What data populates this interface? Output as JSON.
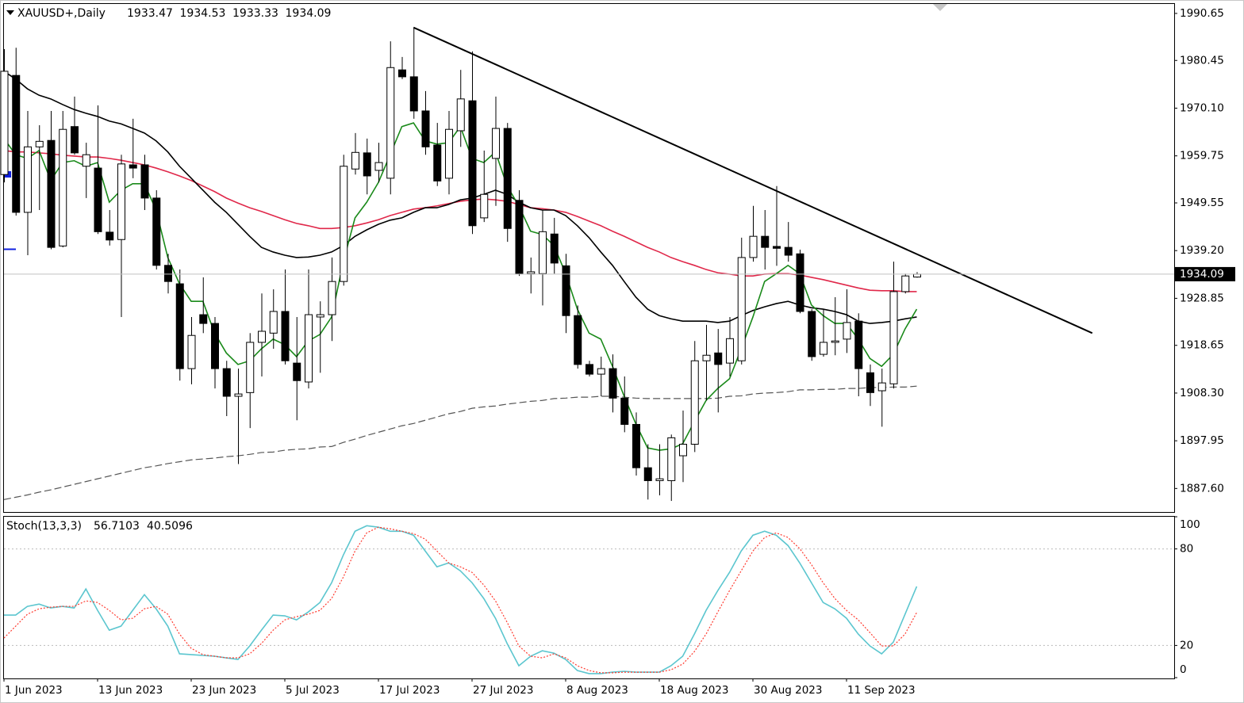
{
  "chart_data": [
    {
      "type": "candlestick",
      "title": "XAUUSD+,Daily",
      "categories": [
        "1 Jun 2023",
        null,
        null,
        null,
        null,
        null,
        null,
        null,
        "13 Jun 2023",
        null,
        null,
        null,
        null,
        null,
        null,
        null,
        "23 Jun 2023",
        null,
        null,
        null,
        null,
        null,
        null,
        null,
        "5 Jul 2023",
        null,
        null,
        null,
        null,
        null,
        null,
        null,
        "17 Jul 2023",
        null,
        null,
        null,
        null,
        null,
        null,
        null,
        "27 Jul 2023",
        null,
        null,
        null,
        null,
        null,
        null,
        null,
        "8 Aug 2023",
        null,
        null,
        null,
        null,
        null,
        null,
        null,
        "18 Aug 2023",
        null,
        null,
        null,
        null,
        null,
        null,
        null,
        "30 Aug 2023",
        null,
        null,
        null,
        null,
        null,
        null,
        null,
        "11 Sep 2023",
        null,
        null,
        null,
        null,
        null,
        null
      ],
      "open": [
        1955.7,
        1977.2,
        1947.5,
        1961.7,
        1963.1,
        1940.2,
        1966.1,
        1957.5,
        1957.1,
        1943.2,
        1941.6,
        1957.8,
        1957.8,
        1950.6,
        1936.0,
        1932.0,
        1913.6,
        1925.3,
        1923.4,
        1913.6,
        1907.6,
        1908.4,
        1919.3,
        1921.3,
        1926.0,
        1914.8,
        1910.7,
        1924.8,
        1925.3,
        1932.5,
        1956.9,
        1960.4,
        1956.6,
        1954.9,
        1978.4,
        1976.9,
        1969.5,
        1962.1,
        1954.9,
        1965.2,
        1971.7,
        1946.3,
        1959.2,
        1965.7,
        1950.1,
        1934.2,
        1934.2,
        1942.8,
        1935.9,
        1925.1,
        1914.5,
        1912.4,
        1913.6,
        1907.2,
        1901.5,
        1892.1,
        1889.3,
        1889.3,
        1894.7,
        1897.2,
        1915.3,
        1917.0,
        1914.8,
        1915.3,
        1937.7,
        1942.3,
        1940.1,
        1939.9,
        1938.5,
        1926.0,
        1916.7,
        1919.3,
        1920.0,
        1923.9,
        1912.7,
        1908.8,
        1910.3,
        1930.3,
        1933.47
      ],
      "high": [
        1982.9,
        1983.2,
        1969.5,
        1966.4,
        1969.5,
        1969.5,
        1972.6,
        1962.6,
        1970.7,
        1948.0,
        1960.0,
        1967.8,
        1960.0,
        1952.3,
        1938.5,
        1935.1,
        1924.8,
        1933.4,
        1924.8,
        1915.3,
        1913.6,
        1921.3,
        1929.9,
        1930.8,
        1935.1,
        1924.8,
        1935.1,
        1928.2,
        1937.7,
        1960.0,
        1964.7,
        1963.5,
        1962.6,
        1984.6,
        1981.2,
        1987.6,
        1973.8,
        1966.9,
        1969.5,
        1978.4,
        1982.4,
        1960.9,
        1972.6,
        1966.9,
        1952.3,
        1937.7,
        1948.0,
        1946.3,
        1938.5,
        1927.3,
        1915.3,
        1916.2,
        1916.7,
        1911.9,
        1904.1,
        1897.2,
        1897.2,
        1899.3,
        1904.5,
        1919.6,
        1923.1,
        1922.2,
        1924.8,
        1942.0,
        1948.9,
        1948.0,
        1953.2,
        1945.4,
        1939.4,
        1926.5,
        1926.5,
        1929.1,
        1930.8,
        1925.6,
        1914.5,
        1913.6,
        1936.8,
        1934.2,
        1934.53
      ],
      "low": [
        1954.0,
        1946.8,
        1938.2,
        1948.0,
        1939.5,
        1939.9,
        1960.0,
        1950.6,
        1942.8,
        1940.3,
        1924.8,
        1954.9,
        1948.0,
        1935.1,
        1929.9,
        1911.0,
        1910.2,
        1921.3,
        1909.3,
        1903.3,
        1892.9,
        1900.7,
        1911.9,
        1917.9,
        1914.5,
        1902.4,
        1909.3,
        1912.7,
        1919.6,
        1931.6,
        1955.7,
        1951.4,
        1954.0,
        1951.4,
        1976.4,
        1967.8,
        1960.0,
        1953.2,
        1951.4,
        1961.7,
        1942.8,
        1945.4,
        1948.9,
        1941.1,
        1933.7,
        1929.9,
        1927.3,
        1934.2,
        1921.3,
        1913.6,
        1911.9,
        1907.6,
        1904.1,
        1899.8,
        1890.4,
        1885.2,
        1886.1,
        1884.9,
        1889.0,
        1895.5,
        1906.7,
        1904.1,
        1911.9,
        1914.5,
        1936.8,
        1935.1,
        1935.9,
        1936.8,
        1925.6,
        1915.3,
        1916.2,
        1916.5,
        1917.0,
        1907.6,
        1905.5,
        1901.0,
        1909.3,
        1929.9,
        1933.33
      ],
      "close": [
        1978.1,
        1947.5,
        1961.7,
        1962.9,
        1939.9,
        1965.5,
        1960.4,
        1960.0,
        1943.3,
        1941.5,
        1958.0,
        1957.1,
        1950.6,
        1936.0,
        1932.5,
        1913.6,
        1920.8,
        1923.4,
        1913.6,
        1907.6,
        1908.1,
        1919.3,
        1921.7,
        1926.0,
        1915.3,
        1911.0,
        1925.3,
        1925.3,
        1932.5,
        1957.5,
        1960.5,
        1955.4,
        1958.3,
        1978.9,
        1976.9,
        1969.5,
        1961.7,
        1954.3,
        1965.5,
        1972.1,
        1944.6,
        1951.4,
        1965.7,
        1944.0,
        1934.2,
        1934.6,
        1943.3,
        1936.5,
        1925.1,
        1914.5,
        1912.4,
        1913.6,
        1907.2,
        1901.5,
        1892.1,
        1889.3,
        1889.7,
        1898.6,
        1897.2,
        1915.3,
        1916.5,
        1914.5,
        1920.1,
        1937.7,
        1942.3,
        1939.9,
        1939.7,
        1938.2,
        1926.0,
        1916.2,
        1919.3,
        1919.6,
        1923.6,
        1913.6,
        1908.4,
        1910.5,
        1930.3,
        1933.7,
        1934.09
      ],
      "up_color": "#ffffff",
      "down_color": "#000000",
      "series": [
        {
          "color": "#555555",
          "dashed": true,
          "values": [
            1885.2,
            1885.7,
            1886.2,
            1886.8,
            1887.3,
            1887.9,
            1888.5,
            1889.1,
            1889.7,
            1890.3,
            1890.9,
            1891.5,
            1892.1,
            1892.5,
            1893.0,
            1893.4,
            1893.8,
            1894.0,
            1894.2,
            1894.5,
            1894.7,
            1895.0,
            1895.4,
            1895.5,
            1895.9,
            1896.1,
            1896.2,
            1896.6,
            1896.7,
            1897.6,
            1898.3,
            1899.1,
            1899.8,
            1900.5,
            1901.2,
            1901.7,
            1902.4,
            1903.1,
            1903.8,
            1904.3,
            1905.0,
            1905.3,
            1905.5,
            1905.9,
            1906.2,
            1906.5,
            1906.7,
            1907.1,
            1907.2,
            1907.4,
            1907.4,
            1907.6,
            1907.6,
            1907.4,
            1907.2,
            1907.1,
            1907.1,
            1907.1,
            1907.1,
            1907.1,
            1907.1,
            1907.2,
            1907.6,
            1907.7,
            1908.1,
            1908.3,
            1908.4,
            1908.6,
            1909.0,
            1909.0,
            1909.1,
            1909.1,
            1909.3,
            1909.3,
            1909.5,
            1909.5,
            1909.6,
            1909.6,
            1909.8
          ]
        },
        {
          "color": "#e0284a",
          "dashed": false,
          "values": [
            1960.9,
            1960.6,
            1960.6,
            1960.4,
            1960.2,
            1959.9,
            1959.7,
            1959.5,
            1959.5,
            1959.2,
            1958.8,
            1958.3,
            1957.8,
            1957.1,
            1956.3,
            1955.4,
            1954.4,
            1953.2,
            1952.0,
            1950.6,
            1949.5,
            1948.5,
            1947.7,
            1946.8,
            1945.9,
            1945.1,
            1944.6,
            1944.0,
            1944.0,
            1944.2,
            1944.6,
            1945.2,
            1945.9,
            1946.8,
            1947.5,
            1948.2,
            1948.5,
            1948.9,
            1949.4,
            1949.9,
            1950.2,
            1950.4,
            1950.2,
            1949.9,
            1949.2,
            1948.5,
            1948.3,
            1948.0,
            1947.5,
            1946.6,
            1945.6,
            1944.6,
            1943.4,
            1942.3,
            1941.1,
            1939.9,
            1938.9,
            1937.7,
            1936.8,
            1936.0,
            1935.1,
            1934.4,
            1934.1,
            1933.7,
            1933.7,
            1934.1,
            1934.2,
            1934.2,
            1933.9,
            1933.4,
            1932.9,
            1932.3,
            1931.7,
            1931.1,
            1930.6,
            1930.5,
            1930.5,
            1930.3,
            1930.3
          ]
        },
        {
          "color": "#000000",
          "dashed": false,
          "values": [
            1978.1,
            1976.4,
            1974.3,
            1972.9,
            1972.1,
            1970.9,
            1969.8,
            1969.0,
            1968.3,
            1967.3,
            1966.7,
            1965.7,
            1964.7,
            1963.0,
            1960.6,
            1957.5,
            1954.9,
            1952.3,
            1949.7,
            1947.5,
            1944.9,
            1942.3,
            1939.9,
            1938.9,
            1938.2,
            1937.7,
            1937.8,
            1938.2,
            1938.9,
            1940.3,
            1942.3,
            1943.7,
            1944.9,
            1945.8,
            1946.3,
            1947.5,
            1948.5,
            1948.5,
            1949.2,
            1950.2,
            1950.6,
            1951.4,
            1952.3,
            1951.4,
            1949.7,
            1948.5,
            1948.0,
            1948.0,
            1946.8,
            1944.6,
            1942.0,
            1938.9,
            1936.0,
            1932.5,
            1929.1,
            1926.5,
            1925.1,
            1924.4,
            1923.9,
            1923.9,
            1923.9,
            1923.6,
            1923.9,
            1925.1,
            1926.2,
            1927.0,
            1927.7,
            1928.2,
            1927.4,
            1926.8,
            1926.5,
            1926.0,
            1925.3,
            1923.9,
            1923.4,
            1923.6,
            1923.9,
            1924.4,
            1924.8
          ]
        },
        {
          "color": "#1a8a1a",
          "dashed": false,
          "values": [
            1963.5,
            1960.0,
            1959.2,
            1960.9,
            1954.4,
            1958.3,
            1958.7,
            1957.5,
            1958.3,
            1949.7,
            1952.3,
            1953.7,
            1953.7,
            1948.0,
            1937.7,
            1932.0,
            1928.2,
            1928.2,
            1921.3,
            1917.0,
            1914.5,
            1915.3,
            1917.9,
            1920.0,
            1918.8,
            1916.2,
            1919.6,
            1921.0,
            1924.8,
            1936.8,
            1946.3,
            1949.7,
            1954.0,
            1960.0,
            1966.1,
            1966.9,
            1963.0,
            1962.3,
            1962.6,
            1966.1,
            1959.2,
            1958.3,
            1960.6,
            1953.2,
            1948.9,
            1943.4,
            1942.7,
            1940.3,
            1934.2,
            1926.5,
            1921.3,
            1920.0,
            1914.1,
            1907.6,
            1901.6,
            1896.4,
            1895.9,
            1896.2,
            1897.3,
            1902.1,
            1906.7,
            1909.3,
            1911.4,
            1917.9,
            1924.8,
            1932.5,
            1934.2,
            1936.0,
            1934.2,
            1927.4,
            1925.1,
            1923.4,
            1923.4,
            1920.0,
            1915.8,
            1914.1,
            1916.7,
            1922.2,
            1926.5
          ]
        }
      ],
      "trendline": {
        "x": [
          35,
          93
        ],
        "y": [
          1987.6,
          1921.3
        ],
        "color": "#000000"
      },
      "ylim": [
        1882.5,
        1992.7
      ],
      "yticks": [
        1990.65,
        1980.45,
        {
          "value": 1970.1,
          "label": "1970.10"
        },
        1959.75,
        1949.55,
        {
          "value": 1939.2,
          "label": "1939.20"
        },
        1928.85,
        1918.65,
        {
          "value": 1908.3,
          "label": "1908.30"
        },
        1897.95,
        {
          "value": 1887.6,
          "label": "1887.60"
        }
      ],
      "grid": false
    },
    {
      "type": "line",
      "title": "Stoch(13,3,3)",
      "series": [
        {
          "color": "#5cc6cf",
          "dashed": false,
          "values": [
            38.9,
            38.9,
            44.3,
            45.7,
            43.3,
            44.3,
            43.3,
            55.1,
            41.8,
            29.5,
            32.0,
            41.8,
            51.6,
            42.8,
            32.0,
            14.8,
            14.3,
            13.8,
            13.3,
            12.3,
            11.3,
            19.7,
            29.5,
            38.9,
            38.4,
            35.9,
            40.8,
            46.7,
            59.0,
            76.2,
            91.0,
            94.4,
            93.5,
            91.0,
            91.0,
            88.5,
            78.7,
            68.9,
            71.3,
            66.4,
            59.0,
            49.2,
            36.9,
            21.2,
            7.4,
            13.3,
            16.7,
            15.2,
            11.3,
            4.4,
            2.5,
            2.5,
            3.4,
            3.9,
            3.4,
            3.4,
            3.4,
            7.4,
            13.3,
            27.1,
            41.8,
            54.1,
            65.4,
            78.7,
            88.5,
            91.0,
            88.5,
            82.1,
            71.3,
            59.0,
            46.7,
            42.8,
            36.9,
            27.1,
            19.7,
            14.8,
            22.1,
            39.4,
            56.7103
          ]
        },
        {
          "color": "#ff3b30",
          "dashed": true,
          "values": [
            24.6,
            32.0,
            39.4,
            42.8,
            43.8,
            44.3,
            44.3,
            47.7,
            46.7,
            41.8,
            35.9,
            36.9,
            42.8,
            44.3,
            39.4,
            27.1,
            18.2,
            14.3,
            13.3,
            12.3,
            12.3,
            14.8,
            21.2,
            29.5,
            35.9,
            37.9,
            39.4,
            41.8,
            49.2,
            62.5,
            78.7,
            90.0,
            93.5,
            92.5,
            91.0,
            89.5,
            86.1,
            78.7,
            71.3,
            68.9,
            65.4,
            57.6,
            47.7,
            34.4,
            19.7,
            13.3,
            12.3,
            14.8,
            12.3,
            7.4,
            4.4,
            3.0,
            3.0,
            3.4,
            3.4,
            3.4,
            3.4,
            4.9,
            8.4,
            16.2,
            27.1,
            40.8,
            54.1,
            66.4,
            78.7,
            87.1,
            90.0,
            87.1,
            80.2,
            70.3,
            59.0,
            49.2,
            41.8,
            35.9,
            28.0,
            19.7,
            19.7,
            27.1,
            40.5096
          ]
        }
      ],
      "ylim": [
        0,
        100
      ],
      "yticks": [
        100,
        80,
        20,
        0
      ],
      "level_lines": true
    }
  ]
}
